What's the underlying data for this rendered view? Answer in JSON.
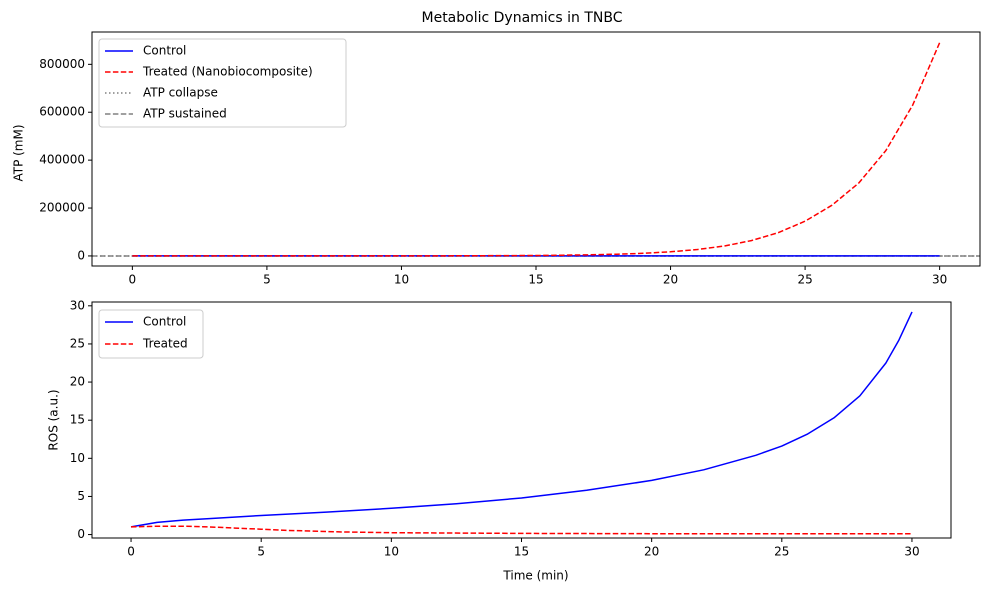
{
  "chart_data": [
    {
      "type": "line",
      "title": "Metabolic Dynamics in TNBC",
      "xlabel": "",
      "ylabel": "ATP (mM)",
      "xlim": [
        -1.5,
        31.5
      ],
      "ylim": [
        -42000,
        935000
      ],
      "xticks": [
        0,
        5,
        10,
        15,
        20,
        25,
        30
      ],
      "xtick_labels": [
        "0",
        "5",
        "10",
        "15",
        "20",
        "25",
        "30"
      ],
      "yticks": [
        0,
        200000,
        400000,
        600000,
        800000
      ],
      "ytick_labels": [
        "0",
        "200000",
        "400000",
        "600000",
        "800000"
      ],
      "grid": false,
      "legend": "top-left",
      "series": [
        {
          "name": "Control",
          "color": "#0000ff",
          "style": "solid",
          "x": [
            0,
            5,
            10,
            15,
            20,
            25,
            30
          ],
          "y": [
            0,
            0,
            0,
            0,
            0,
            0,
            0
          ]
        },
        {
          "name": "Treated (Nanobiocomposite)",
          "color": "#ff0000",
          "style": "dashed",
          "x": [
            0,
            2,
            4,
            6,
            8,
            10,
            12,
            14,
            15,
            16,
            17,
            18,
            19,
            20,
            21,
            22,
            23,
            24,
            25,
            26,
            27,
            28,
            29,
            30
          ],
          "y": [
            0,
            0,
            0,
            0,
            0,
            0,
            500,
            1300,
            2000,
            3000,
            4600,
            7200,
            11200,
            17400,
            27000,
            41500,
            64000,
            97000,
            145000,
            212000,
            305000,
            440000,
            630000,
            890000
          ]
        }
      ],
      "hlines": [
        {
          "name": "ATP collapse",
          "y": 0,
          "color": "#808080",
          "style": "dotted"
        },
        {
          "name": "ATP sustained",
          "y": 0,
          "color": "#808080",
          "style": "dashed"
        }
      ]
    },
    {
      "type": "line",
      "title": "",
      "xlabel": "Time (min)",
      "ylabel": "ROS (a.u.)",
      "xlim": [
        -1.5,
        31.5
      ],
      "ylim": [
        -0.45,
        30.5
      ],
      "xticks": [
        0,
        5,
        10,
        15,
        20,
        25,
        30
      ],
      "xtick_labels": [
        "0",
        "5",
        "10",
        "15",
        "20",
        "25",
        "30"
      ],
      "yticks": [
        0,
        5,
        10,
        15,
        20,
        25,
        30
      ],
      "ytick_labels": [
        "0",
        "5",
        "10",
        "15",
        "20",
        "25",
        "30"
      ],
      "grid": false,
      "legend": "top-left",
      "series": [
        {
          "name": "Control",
          "color": "#0000ff",
          "style": "solid",
          "x": [
            0,
            1,
            2,
            3,
            5,
            7.5,
            10,
            12.5,
            15,
            17.5,
            20,
            22,
            24,
            25,
            26,
            27,
            28,
            29,
            29.5,
            30
          ],
          "y": [
            1,
            1.6,
            1.9,
            2.1,
            2.5,
            2.95,
            3.45,
            4.05,
            4.8,
            5.8,
            7.1,
            8.5,
            10.4,
            11.6,
            13.2,
            15.3,
            18.2,
            22.5,
            25.5,
            29.2
          ]
        },
        {
          "name": "Treated",
          "color": "#ff0000",
          "style": "dashed",
          "x": [
            0,
            1,
            2,
            3,
            4,
            5,
            6,
            7,
            8,
            10,
            12,
            15,
            20,
            25,
            30
          ],
          "y": [
            1,
            1.1,
            1.1,
            1.0,
            0.85,
            0.7,
            0.55,
            0.45,
            0.35,
            0.25,
            0.2,
            0.15,
            0.12,
            0.12,
            0.12
          ]
        }
      ]
    }
  ]
}
